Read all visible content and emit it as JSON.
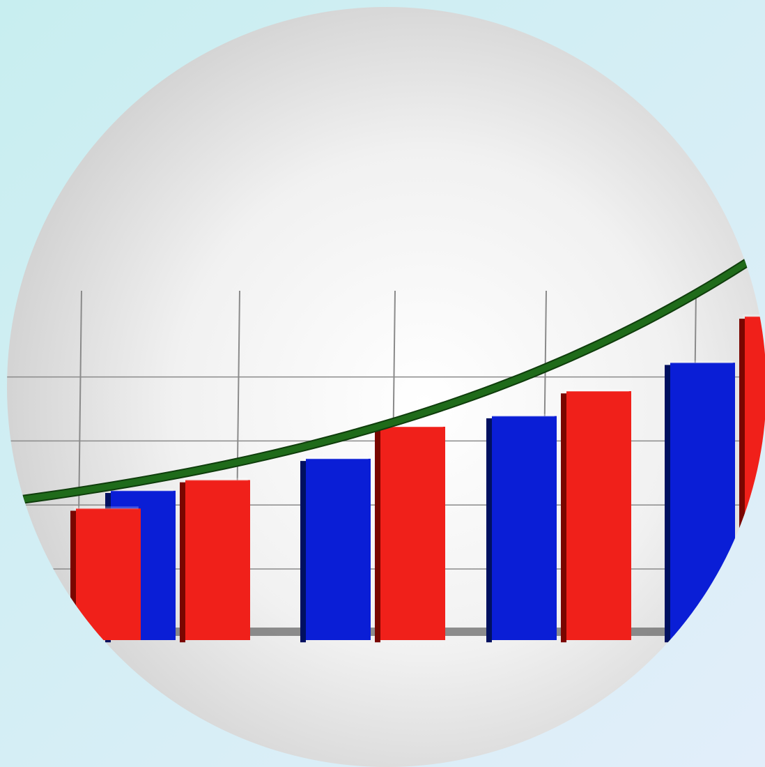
{
  "colors": {
    "bg_left": "#c8eef0",
    "bg_right": "#e2eefa",
    "disc_center": "#ffffff",
    "disc_edge": "#cdcdcd",
    "series_blue": "#0a1ed6",
    "series_red": "#f0201a",
    "trend": "#1f6b1a",
    "grid": "#8a8a8a"
  },
  "chart_data": {
    "type": "bar",
    "categories": [
      "",
      "",
      "",
      "",
      ""
    ],
    "series": [
      {
        "color": "blue",
        "values": [
          null,
          4.2,
          5.1,
          6.3,
          7.8
        ]
      },
      {
        "color": "red",
        "values": [
          3.7,
          4.5,
          6.0,
          7.0,
          9.1
        ]
      }
    ],
    "trend_line": {
      "color": "green",
      "shape": "exponential curve rising to the right"
    },
    "ylim": [
      0,
      11
    ],
    "grid": true,
    "legend": "none",
    "title": "",
    "xlabel": "",
    "ylabel": ""
  }
}
